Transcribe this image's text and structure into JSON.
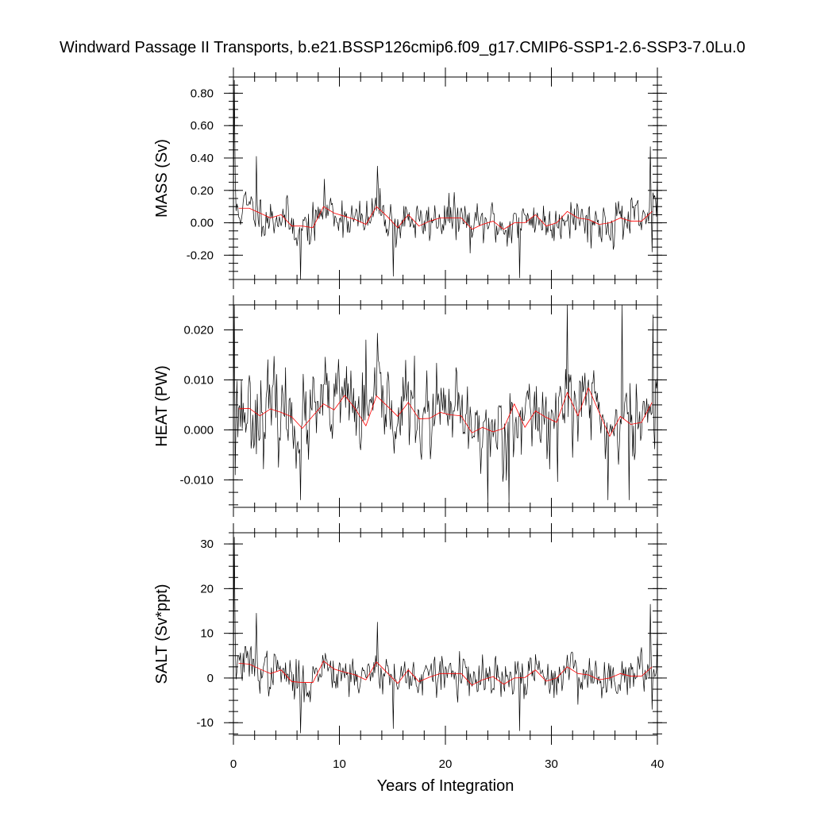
{
  "figure": {
    "title": "Windward Passage II Transports, b.e21.BSSP126cmip6.f09_g17.CMIP6-SSP1-2.6-SSP3-7.0Lu.0",
    "xlabel": "Years of Integration"
  },
  "colors": {
    "raw_series": "#000000",
    "smoothed_series": "#ff0000"
  },
  "chart_data": [
    {
      "type": "line",
      "panel": "mass",
      "title": "",
      "xlabel": "",
      "ylabel": "MASS (Sv)",
      "xlim": [
        0,
        40
      ],
      "ylim": [
        -0.35,
        0.9
      ],
      "xticks": [
        0,
        10,
        20,
        30,
        40
      ],
      "yticks": [
        -0.2,
        0.0,
        0.2,
        0.4,
        0.6,
        0.8
      ],
      "ytick_labels": [
        "-0.20",
        "0.00",
        "0.20",
        "0.40",
        "0.60",
        "0.80"
      ],
      "show_xtick_labels": false,
      "grid": false,
      "raw": {
        "samples_per_year": 12,
        "mean": 0.02,
        "amplitude": 0.085,
        "seed": 11,
        "peaks": [
          [
            0.1,
            0.88
          ],
          [
            0.2,
            0.3
          ],
          [
            2.2,
            0.41
          ],
          [
            6.3,
            -0.35
          ],
          [
            13.6,
            0.35
          ],
          [
            15.1,
            -0.33
          ],
          [
            27.0,
            -0.34
          ],
          [
            39.3,
            0.47
          ],
          [
            39.5,
            -0.18
          ],
          [
            40.0,
            0.3
          ]
        ]
      },
      "smoothed": {
        "x": [
          0.5,
          1.5,
          2.5,
          3.5,
          4.5,
          5.5,
          6.5,
          7.5,
          8.5,
          9.5,
          10.5,
          11.5,
          12.5,
          13.5,
          14.5,
          15.5,
          16.5,
          17.5,
          18.5,
          19.5,
          20.5,
          21.5,
          22.5,
          23.5,
          24.5,
          25.5,
          26.5,
          27.5,
          28.5,
          29.5,
          30.5,
          31.5,
          32.5,
          33.5,
          34.5,
          35.5,
          36.5,
          37.5,
          38.5,
          39.5
        ],
        "y": [
          0.09,
          0.09,
          0.06,
          0.03,
          0.05,
          -0.02,
          -0.02,
          -0.03,
          0.1,
          0.06,
          0.04,
          0.02,
          -0.01,
          0.1,
          0.04,
          -0.03,
          0.05,
          -0.02,
          0.01,
          0.03,
          0.03,
          0.03,
          -0.04,
          -0.01,
          0.01,
          -0.04,
          0.0,
          0.0,
          0.05,
          -0.02,
          0.0,
          0.07,
          0.03,
          0.02,
          -0.01,
          0.0,
          0.03,
          0.01,
          0.01,
          0.07
        ]
      }
    },
    {
      "type": "line",
      "panel": "heat",
      "title": "",
      "xlabel": "",
      "ylabel": "HEAT (PW)",
      "xlim": [
        0,
        40
      ],
      "ylim": [
        -0.0155,
        0.025
      ],
      "xticks": [
        0,
        10,
        20,
        30,
        40
      ],
      "yticks": [
        -0.01,
        0.0,
        0.01,
        0.02
      ],
      "ytick_labels": [
        "-0.010",
        "0.000",
        "0.010",
        "0.020"
      ],
      "show_xtick_labels": false,
      "grid": false,
      "raw": {
        "samples_per_year": 12,
        "mean": 0.003,
        "amplitude": 0.0055,
        "seed": 23,
        "peaks": [
          [
            0.1,
            0.025
          ],
          [
            0.2,
            -0.009
          ],
          [
            6.3,
            -0.014
          ],
          [
            12.5,
            0.018
          ],
          [
            24.0,
            -0.015
          ],
          [
            26.0,
            -0.015
          ],
          [
            31.5,
            0.025
          ],
          [
            36.7,
            0.025
          ],
          [
            35.3,
            -0.014
          ],
          [
            37.3,
            -0.014
          ],
          [
            39.6,
            0.023
          ]
        ]
      },
      "smoothed": {
        "x": [
          0.5,
          1.5,
          2.5,
          3.5,
          4.5,
          5.5,
          6.5,
          7.5,
          8.5,
          9.5,
          10.5,
          11.5,
          12.5,
          13.5,
          14.5,
          15.5,
          16.5,
          17.5,
          18.5,
          19.5,
          20.5,
          21.5,
          22.5,
          23.5,
          24.5,
          25.5,
          26.5,
          27.5,
          28.5,
          29.5,
          30.5,
          31.5,
          32.5,
          33.5,
          34.5,
          35.5,
          36.5,
          37.5,
          38.5,
          39.5
        ],
        "y": [
          0.0042,
          0.0043,
          0.0028,
          0.0042,
          0.0035,
          0.0026,
          0.0003,
          0.0028,
          0.0052,
          0.004,
          0.0069,
          0.0042,
          0.0008,
          0.0068,
          0.0048,
          0.0027,
          0.0055,
          0.0022,
          0.0023,
          0.0035,
          0.003,
          0.0028,
          -0.0006,
          0.0005,
          -0.0004,
          0.0003,
          0.0052,
          0.0005,
          0.0038,
          0.0025,
          0.0015,
          0.0075,
          0.0028,
          0.0084,
          0.0035,
          -0.0013,
          0.0027,
          0.0011,
          0.0015,
          0.0055
        ]
      }
    },
    {
      "type": "line",
      "panel": "salt",
      "title": "",
      "xlabel": "Years of Integration",
      "ylabel": "SALT (Sv*ppt)",
      "xlim": [
        0,
        40
      ],
      "ylim": [
        -12.8,
        32.5
      ],
      "xticks": [
        0,
        10,
        20,
        30,
        40
      ],
      "xtick_labels": [
        "0",
        "10",
        "20",
        "30",
        "40"
      ],
      "yticks": [
        -10,
        0,
        10,
        20,
        30
      ],
      "ytick_labels": [
        "-10",
        "0",
        "10",
        "20",
        "30"
      ],
      "show_xtick_labels": true,
      "grid": false,
      "raw": {
        "samples_per_year": 12,
        "mean": 0.8,
        "amplitude": 3.0,
        "seed": 37,
        "peaks": [
          [
            0.1,
            31.5
          ],
          [
            0.2,
            9.0
          ],
          [
            2.2,
            14.5
          ],
          [
            6.3,
            -12.3
          ],
          [
            13.6,
            12.5
          ],
          [
            15.1,
            -11.3
          ],
          [
            27.0,
            -11.8
          ],
          [
            39.3,
            16.5
          ],
          [
            39.5,
            -7.0
          ],
          [
            40.0,
            10.5
          ]
        ]
      },
      "smoothed": {
        "x": [
          0.5,
          1.5,
          2.5,
          3.5,
          4.5,
          5.5,
          6.5,
          7.5,
          8.5,
          9.5,
          10.5,
          11.5,
          12.5,
          13.5,
          14.5,
          15.5,
          16.5,
          17.5,
          18.5,
          19.5,
          20.5,
          21.5,
          22.5,
          23.5,
          24.5,
          25.5,
          26.5,
          27.5,
          28.5,
          29.5,
          30.5,
          31.5,
          32.5,
          33.5,
          34.5,
          35.5,
          36.5,
          37.5,
          38.5,
          39.5
        ],
        "y": [
          3.3,
          3.1,
          2.0,
          1.0,
          1.8,
          -0.8,
          -1.0,
          -1.0,
          3.8,
          2.0,
          1.3,
          0.7,
          -0.4,
          3.6,
          1.2,
          -1.2,
          1.8,
          -0.8,
          0.2,
          1.0,
          1.0,
          1.0,
          -1.6,
          -0.4,
          0.3,
          -1.4,
          0.0,
          0.1,
          1.8,
          -0.7,
          0.0,
          2.5,
          1.0,
          0.7,
          -0.4,
          0.0,
          1.0,
          0.4,
          0.4,
          2.5
        ]
      }
    }
  ]
}
